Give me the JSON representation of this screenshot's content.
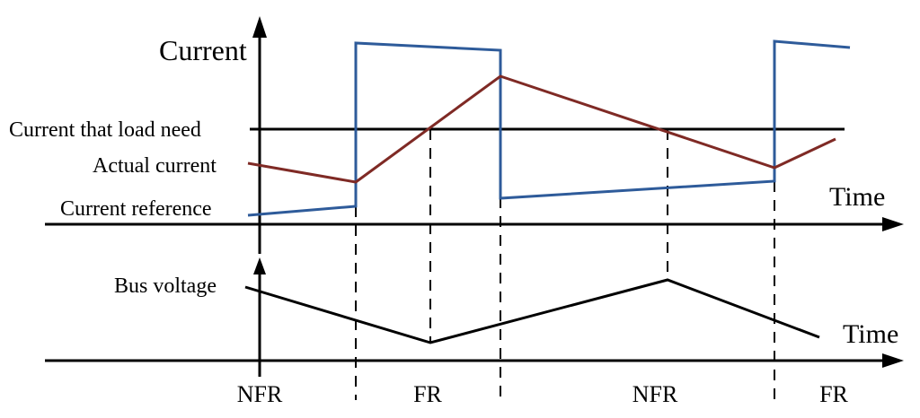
{
  "labels": {
    "current_axis": "Current",
    "time_axis_top": "Time",
    "time_axis_bottom": "Time",
    "load_need": "Current that load need",
    "actual_current": "Actual current",
    "current_reference": "Current reference",
    "bus_voltage": "Bus voltage"
  },
  "regions": [
    "NFR",
    "FR",
    "NFR",
    "FR"
  ],
  "colors": {
    "reference": "#2e5b9a",
    "actual": "#7f2a25",
    "axis": "#000000",
    "bus_voltage": "#000000"
  }
}
